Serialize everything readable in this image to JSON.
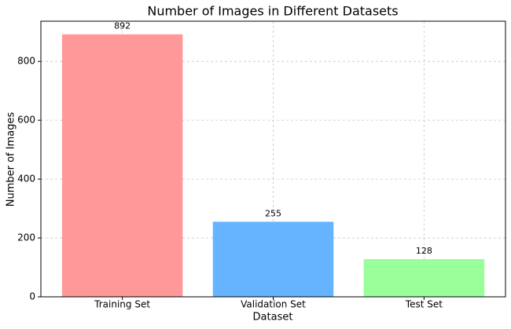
{
  "chart_data": {
    "type": "bar",
    "title": "Number of Images in Different Datasets",
    "x_label": "Dataset",
    "y_label": "Number of Images",
    "categories": [
      "Training Set",
      "Validation Set",
      "Test Set"
    ],
    "values": [
      892,
      255,
      128
    ],
    "colors": [
      "#ff9999",
      "#66b3ff",
      "#99ff99"
    ],
    "ylim": [
      0,
      936.6
    ],
    "yticks": [
      0,
      200,
      400,
      600,
      800
    ],
    "grid": true
  }
}
